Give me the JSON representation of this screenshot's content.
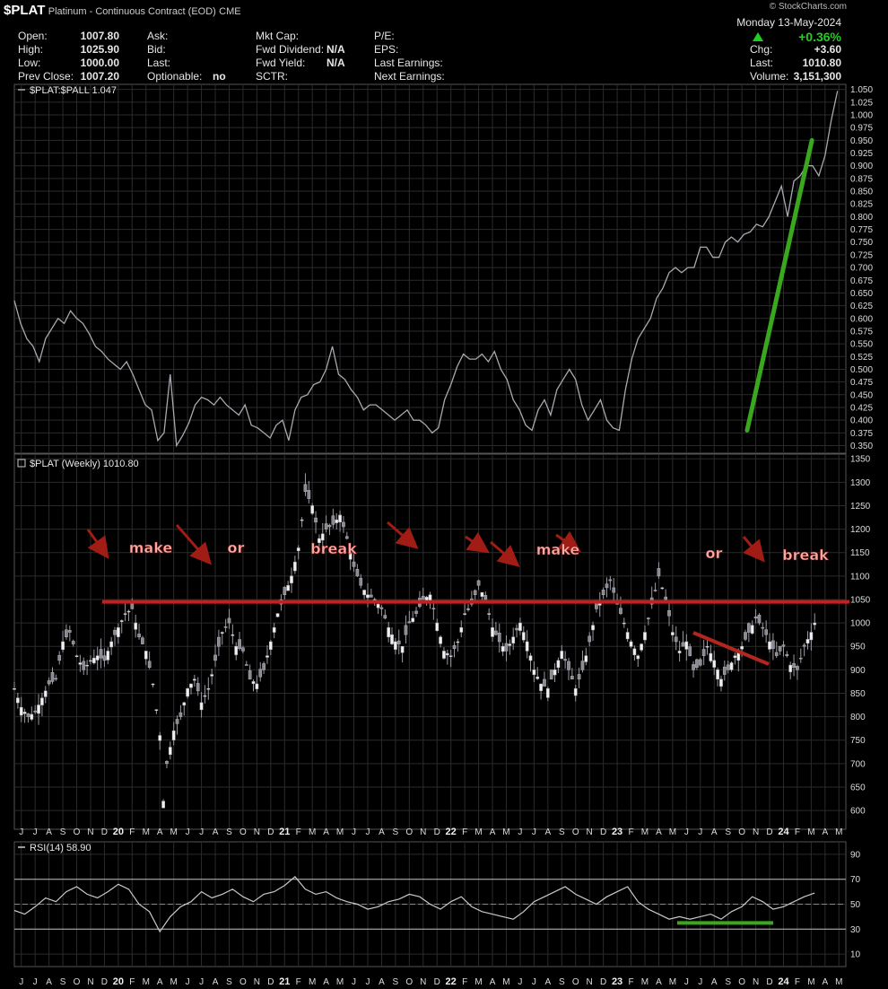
{
  "header": {
    "symbol": "$PLAT",
    "name": "Platinum - Continuous Contract (EOD)",
    "exchange": "CME",
    "watermark": "© StockCharts.com",
    "date": "Monday 13-May-2024",
    "change_pct": "+0.36%",
    "stats_left": [
      {
        "label": "Open:",
        "value": "1007.80"
      },
      {
        "label": "High:",
        "value": "1025.90"
      },
      {
        "label": "Low:",
        "value": "1000.00"
      },
      {
        "label": "Prev Close:",
        "value": "1007.20"
      }
    ],
    "stats_mid1": [
      {
        "label": "Ask:",
        "value": ""
      },
      {
        "label": "Bid:",
        "value": ""
      },
      {
        "label": "Last:",
        "value": ""
      },
      {
        "label": "Optionable:",
        "value": "no"
      }
    ],
    "stats_mid2": [
      {
        "label": "Mkt Cap:",
        "value": ""
      },
      {
        "label": "Fwd Dividend:",
        "value": "N/A"
      },
      {
        "label": "Fwd Yield:",
        "value": "N/A"
      },
      {
        "label": "SCTR:",
        "value": ""
      }
    ],
    "stats_mid3": [
      {
        "label": "P/E:"
      },
      {
        "label": "EPS:"
      },
      {
        "label": "Last Earnings:"
      },
      {
        "label": "Next Earnings:"
      }
    ],
    "stats_right": [
      {
        "label": "Chg:",
        "value": "+3.60"
      },
      {
        "label": "Last:",
        "value": "1010.80"
      },
      {
        "label": "Volume:",
        "value": "3,151,300"
      }
    ]
  },
  "colors": {
    "background": "#000000",
    "grid": "#2b2b2b",
    "price": "#a8a8b0",
    "resistance": "#c81e1e",
    "trend": "#3aa81e",
    "arrow": "#a01c14"
  },
  "chart_data": [
    {
      "type": "line",
      "title": "$PLAT:$PALL 1.047",
      "legend": "$PLAT:$PALL 1.047",
      "ylim": [
        0.335,
        1.06
      ],
      "yticks": [
        0.35,
        0.375,
        0.4,
        0.425,
        0.45,
        0.475,
        0.5,
        0.525,
        0.55,
        0.575,
        0.6,
        0.625,
        0.65,
        0.675,
        0.7,
        0.725,
        0.75,
        0.775,
        0.8,
        0.825,
        0.85,
        0.875,
        0.9,
        0.925,
        0.95,
        0.975,
        1.0,
        1.025,
        1.05
      ],
      "yticklabels": [
        "0.350",
        "0.375",
        "0.400",
        "0.425",
        "0.450",
        "0.475",
        "0.500",
        "0.525",
        "0.550",
        "0.575",
        "0.600",
        "0.625",
        "0.650",
        "0.675",
        "0.700",
        "0.725",
        "0.750",
        "0.775",
        "0.800",
        "0.825",
        "0.850",
        "0.875",
        "0.900",
        "0.925",
        "0.950",
        "0.975",
        "1.000",
        "1.025",
        "1.050"
      ],
      "series": [
        {
          "x": [
            0,
            2,
            4,
            6,
            8,
            10,
            12,
            14,
            16,
            18,
            20,
            22,
            24,
            26,
            28,
            30,
            32,
            34,
            36,
            38,
            40,
            42,
            44,
            46,
            48,
            50,
            52,
            54,
            56,
            58,
            60,
            62,
            64,
            66,
            68,
            70,
            72,
            74,
            76,
            78,
            80,
            82,
            84,
            86,
            88,
            90,
            92,
            94,
            96,
            98,
            100,
            102,
            104,
            106,
            108,
            110,
            112,
            114,
            116,
            118,
            120,
            122,
            124,
            126,
            128,
            130,
            132,
            134,
            136,
            138,
            140,
            142,
            144,
            146,
            148,
            150,
            152,
            154,
            156,
            158,
            160,
            162,
            164,
            166,
            168,
            170,
            172,
            174,
            176,
            178,
            180,
            182,
            184,
            186,
            188,
            190,
            192,
            194,
            196,
            198,
            200,
            202,
            204,
            206,
            208,
            210,
            212,
            214,
            216,
            218,
            220,
            222,
            224,
            226,
            228,
            230,
            232,
            234,
            236,
            238,
            240,
            242,
            244,
            246,
            248,
            250,
            252,
            254,
            256,
            258,
            260,
            262,
            264
          ],
          "values": [
            0.635,
            0.59,
            0.56,
            0.545,
            0.515,
            0.56,
            0.58,
            0.6,
            0.59,
            0.615,
            0.6,
            0.59,
            0.57,
            0.545,
            0.535,
            0.52,
            0.51,
            0.5,
            0.515,
            0.49,
            0.46,
            0.43,
            0.42,
            0.36,
            0.375,
            0.49,
            0.35,
            0.37,
            0.395,
            0.43,
            0.445,
            0.44,
            0.43,
            0.445,
            0.43,
            0.42,
            0.41,
            0.43,
            0.39,
            0.385,
            0.375,
            0.365,
            0.39,
            0.4,
            0.36,
            0.42,
            0.445,
            0.45,
            0.47,
            0.475,
            0.5,
            0.545,
            0.49,
            0.48,
            0.46,
            0.445,
            0.42,
            0.43,
            0.43,
            0.42,
            0.41,
            0.4,
            0.41,
            0.42,
            0.4,
            0.4,
            0.39,
            0.375,
            0.385,
            0.44,
            0.47,
            0.505,
            0.53,
            0.52,
            0.52,
            0.53,
            0.515,
            0.535,
            0.5,
            0.48,
            0.44,
            0.42,
            0.39,
            0.38,
            0.42,
            0.44,
            0.41,
            0.46,
            0.48,
            0.5,
            0.48,
            0.43,
            0.4,
            0.42,
            0.44,
            0.4,
            0.385,
            0.38,
            0.46,
            0.52,
            0.56,
            0.58,
            0.6,
            0.64,
            0.66,
            0.69,
            0.7,
            0.69,
            0.7,
            0.7,
            0.74,
            0.74,
            0.72,
            0.72,
            0.75,
            0.76,
            0.75,
            0.765,
            0.77,
            0.785,
            0.78,
            0.8,
            0.83,
            0.86,
            0.8,
            0.87,
            0.88,
            0.9,
            0.9,
            0.88,
            0.92,
            0.99,
            1.047
          ]
        }
      ],
      "trendline": {
        "from": [
          215,
          0.38
        ],
        "to": [
          318,
          0.95
        ]
      }
    },
    {
      "type": "bar",
      "title": "$PLAT (Weekly) 1010.80",
      "legend": "$PLAT (Weekly) 1010.80",
      "ylim": [
        560,
        1360
      ],
      "yticks": [
        600,
        650,
        700,
        750,
        800,
        850,
        900,
        950,
        1000,
        1050,
        1100,
        1150,
        1200,
        1250,
        1300,
        1350
      ],
      "yticklabels": [
        "600",
        "650",
        "700",
        "750",
        "800",
        "850",
        "900",
        "950",
        "1000",
        "1050",
        "1100",
        "1150",
        "1200",
        "1250",
        "1300",
        "1350"
      ],
      "xticklabels": [
        "J",
        "J",
        "A",
        "S",
        "O",
        "N",
        "D",
        "20",
        "F",
        "M",
        "A",
        "M",
        "J",
        "J",
        "A",
        "S",
        "O",
        "N",
        "D",
        "21",
        "F",
        "M",
        "A",
        "M",
        "J",
        "J",
        "A",
        "S",
        "O",
        "N",
        "D",
        "22",
        "F",
        "M",
        "A",
        "M",
        "J",
        "J",
        "A",
        "S",
        "O",
        "N",
        "D",
        "23",
        "F",
        "M",
        "A",
        "M",
        "J",
        "J",
        "A",
        "S",
        "O",
        "N",
        "D",
        "24",
        "F",
        "M",
        "A",
        "M"
      ],
      "anchors": [
        [
          0,
          860
        ],
        [
          2,
          820
        ],
        [
          4,
          800
        ],
        [
          6,
          810
        ],
        [
          8,
          840
        ],
        [
          10,
          870
        ],
        [
          12,
          880
        ],
        [
          14,
          960
        ],
        [
          16,
          980
        ],
        [
          18,
          930
        ],
        [
          20,
          900
        ],
        [
          22,
          920
        ],
        [
          24,
          930
        ],
        [
          26,
          920
        ],
        [
          28,
          960
        ],
        [
          30,
          990
        ],
        [
          32,
          1020
        ],
        [
          34,
          1030
        ],
        [
          36,
          970
        ],
        [
          38,
          940
        ],
        [
          40,
          870
        ],
        [
          42,
          760
        ],
        [
          43,
          620
        ],
        [
          44,
          700
        ],
        [
          46,
          770
        ],
        [
          48,
          800
        ],
        [
          50,
          860
        ],
        [
          52,
          880
        ],
        [
          54,
          830
        ],
        [
          56,
          860
        ],
        [
          58,
          920
        ],
        [
          60,
          980
        ],
        [
          62,
          1000
        ],
        [
          64,
          950
        ],
        [
          66,
          940
        ],
        [
          68,
          880
        ],
        [
          70,
          870
        ],
        [
          72,
          900
        ],
        [
          74,
          960
        ],
        [
          76,
          1020
        ],
        [
          78,
          1060
        ],
        [
          80,
          1100
        ],
        [
          82,
          1160
        ],
        [
          84,
          1280
        ],
        [
          86,
          1250
        ],
        [
          88,
          1180
        ],
        [
          90,
          1200
        ],
        [
          92,
          1210
        ],
        [
          94,
          1230
        ],
        [
          96,
          1180
        ],
        [
          98,
          1120
        ],
        [
          100,
          1080
        ],
        [
          102,
          1060
        ],
        [
          104,
          1050
        ],
        [
          106,
          1030
        ],
        [
          108,
          990
        ],
        [
          110,
          960
        ],
        [
          112,
          950
        ],
        [
          114,
          1000
        ],
        [
          116,
          1020
        ],
        [
          118,
          1050
        ],
        [
          120,
          1060
        ],
        [
          122,
          1000
        ],
        [
          124,
          940
        ],
        [
          126,
          930
        ],
        [
          128,
          960
        ],
        [
          130,
          1020
        ],
        [
          132,
          1040
        ],
        [
          134,
          1080
        ],
        [
          136,
          1050
        ],
        [
          138,
          990
        ],
        [
          140,
          960
        ],
        [
          142,
          940
        ],
        [
          144,
          970
        ],
        [
          146,
          1000
        ],
        [
          148,
          960
        ],
        [
          150,
          900
        ],
        [
          152,
          870
        ],
        [
          154,
          860
        ],
        [
          156,
          900
        ],
        [
          158,
          940
        ],
        [
          160,
          900
        ],
        [
          162,
          860
        ],
        [
          164,
          900
        ],
        [
          166,
          960
        ],
        [
          168,
          1030
        ],
        [
          170,
          1060
        ],
        [
          172,
          1090
        ],
        [
          174,
          1040
        ],
        [
          176,
          1000
        ],
        [
          178,
          960
        ],
        [
          180,
          930
        ],
        [
          182,
          980
        ],
        [
          184,
          1040
        ],
        [
          186,
          1100
        ],
        [
          188,
          1050
        ],
        [
          190,
          980
        ],
        [
          192,
          940
        ],
        [
          194,
          960
        ],
        [
          196,
          900
        ],
        [
          198,
          910
        ],
        [
          200,
          950
        ],
        [
          202,
          920
        ],
        [
          204,
          880
        ],
        [
          206,
          900
        ],
        [
          208,
          930
        ],
        [
          210,
          950
        ],
        [
          212,
          980
        ],
        [
          214,
          1010
        ],
        [
          216,
          990
        ],
        [
          218,
          960
        ],
        [
          220,
          930
        ],
        [
          222,
          950
        ],
        [
          224,
          910
        ],
        [
          226,
          900
        ],
        [
          228,
          950
        ],
        [
          230,
          980
        ],
        [
          231,
          1000
        ]
      ],
      "resistance": 1045,
      "annotations": [
        "make",
        "or",
        "break",
        "make",
        "or",
        "break"
      ]
    },
    {
      "type": "line",
      "title": "RSI(14) 58.90",
      "legend": "RSI(14) 58.90",
      "ylim": [
        0,
        100
      ],
      "yticks": [
        10,
        30,
        50,
        70,
        90
      ],
      "yticklabels": [
        "10",
        "30",
        "50",
        "70",
        "90"
      ],
      "series": [
        {
          "x": [
            0,
            3,
            6,
            9,
            12,
            15,
            18,
            21,
            24,
            27,
            30,
            33,
            36,
            39,
            42,
            45,
            48,
            51,
            54,
            57,
            60,
            63,
            66,
            69,
            72,
            75,
            78,
            81,
            84,
            87,
            90,
            93,
            96,
            99,
            102,
            105,
            108,
            111,
            114,
            117,
            120,
            123,
            126,
            129,
            132,
            135,
            138,
            141,
            144,
            147,
            150,
            153,
            156,
            159,
            162,
            165,
            168,
            171,
            174,
            177,
            180,
            183,
            186,
            189,
            192,
            195,
            198,
            201,
            204,
            207,
            210,
            213,
            216,
            219,
            222,
            225,
            228,
            231
          ],
          "values": [
            45,
            42,
            48,
            55,
            52,
            60,
            64,
            58,
            55,
            60,
            66,
            62,
            50,
            44,
            28,
            40,
            48,
            52,
            60,
            55,
            58,
            62,
            56,
            52,
            58,
            60,
            65,
            72,
            62,
            58,
            60,
            55,
            52,
            50,
            46,
            48,
            52,
            54,
            58,
            56,
            50,
            46,
            52,
            56,
            48,
            44,
            42,
            40,
            38,
            44,
            52,
            56,
            60,
            64,
            58,
            54,
            50,
            56,
            60,
            64,
            52,
            46,
            42,
            38,
            40,
            38,
            40,
            42,
            38,
            44,
            48,
            56,
            52,
            46,
            48,
            52,
            56,
            58.9
          ]
        }
      ],
      "support_segment": [
        185,
        210,
        35
      ]
    }
  ]
}
